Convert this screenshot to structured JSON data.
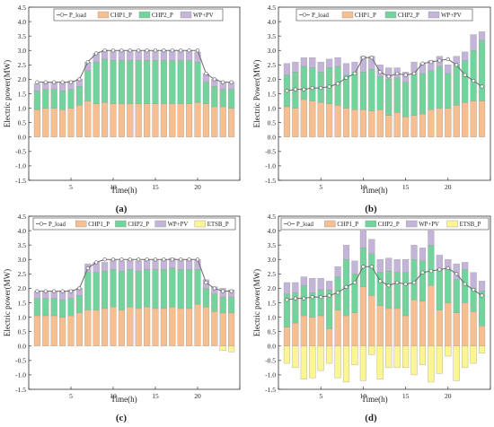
{
  "colors": {
    "chp1": "#f7bf8f",
    "chp2": "#72d49c",
    "wppv": "#c4b4d9",
    "etsb": "#fbf593",
    "load_line": "#6a6a6a",
    "load_marker_fill": "#ffffff",
    "bar_edge": "#9a9a9a"
  },
  "chart_data": [
    {
      "panel": "(a)",
      "type": "bar",
      "stacked": true,
      "xlabel": "Time(h)",
      "ylabel": "Electric power(MW)",
      "xlim": [
        0,
        25
      ],
      "ylim": [
        -1.5,
        4.5
      ],
      "xticks": [
        0,
        5,
        10,
        15,
        20,
        25
      ],
      "yticks": [
        -1.5,
        -1.0,
        -0.5,
        0.0,
        0.5,
        1.0,
        1.5,
        2.0,
        2.5,
        3.0,
        3.5,
        4.0,
        4.5
      ],
      "ytick_labels": [
        "-1.5",
        "-1.0",
        "-0.5",
        "0.0",
        "0.5",
        "1.0",
        "1.5",
        "2.0",
        "2.5",
        "3.0",
        "3.5",
        "4.0",
        "4.5"
      ],
      "legend_position": "top-left",
      "x": [
        1,
        2,
        3,
        4,
        5,
        6,
        7,
        8,
        9,
        10,
        11,
        12,
        13,
        14,
        15,
        16,
        17,
        18,
        19,
        20,
        21,
        22,
        23,
        24
      ],
      "series": [
        {
          "name": "P_load",
          "kind": "line",
          "values": [
            1.9,
            1.9,
            1.9,
            1.9,
            1.9,
            2.0,
            2.6,
            2.9,
            3.0,
            3.0,
            3.0,
            3.0,
            3.0,
            3.0,
            3.0,
            3.0,
            3.0,
            3.0,
            3.0,
            3.0,
            2.2,
            2.0,
            1.9,
            1.9
          ]
        },
        {
          "name": "CHP1_P",
          "color_key": "chp1",
          "values": [
            0.95,
            1.0,
            1.0,
            0.95,
            1.0,
            1.1,
            1.25,
            1.15,
            1.2,
            1.15,
            1.15,
            1.15,
            1.15,
            1.15,
            1.15,
            1.15,
            1.15,
            1.15,
            1.15,
            1.2,
            1.15,
            1.05,
            1.05,
            1.0
          ]
        },
        {
          "name": "CHP2_P",
          "color_key": "chp2",
          "values": [
            0.65,
            0.65,
            0.65,
            0.65,
            0.65,
            0.65,
            1.05,
            1.45,
            1.5,
            1.5,
            1.5,
            1.5,
            1.5,
            1.5,
            1.5,
            1.5,
            1.5,
            1.5,
            1.5,
            1.4,
            0.75,
            0.7,
            0.6,
            0.65
          ]
        },
        {
          "name": "WP+PV",
          "color_key": "wppv",
          "values": [
            0.25,
            0.25,
            0.25,
            0.3,
            0.3,
            0.25,
            0.3,
            0.3,
            0.3,
            0.35,
            0.35,
            0.35,
            0.35,
            0.35,
            0.35,
            0.35,
            0.35,
            0.35,
            0.35,
            0.35,
            0.3,
            0.25,
            0.25,
            0.25
          ]
        }
      ]
    },
    {
      "panel": "(b)",
      "type": "bar",
      "stacked": true,
      "xlabel": "Time(h)",
      "ylabel": "Electric Power(MW)",
      "xlim": [
        0,
        25
      ],
      "ylim": [
        -1.5,
        4.5
      ],
      "xticks": [
        0,
        5,
        10,
        15,
        20,
        25
      ],
      "yticks": [
        -1.5,
        -1.0,
        -0.5,
        0.0,
        0.5,
        1.0,
        1.5,
        2.0,
        2.5,
        3.0,
        3.5,
        4.0,
        4.5
      ],
      "ytick_labels": [
        "-1.5",
        "-1.0",
        "-0.5",
        "0.0",
        "0.5",
        "1.0",
        "1.5",
        "2.0",
        "2.5",
        "3.0",
        "3.5",
        "4.0",
        "4.5"
      ],
      "legend_position": "top",
      "x": [
        1,
        2,
        3,
        4,
        5,
        6,
        7,
        8,
        9,
        10,
        11,
        12,
        13,
        14,
        15,
        16,
        17,
        18,
        19,
        20,
        21,
        22,
        23,
        24
      ],
      "series": [
        {
          "name": "P_load",
          "kind": "line",
          "values": [
            1.6,
            1.65,
            1.65,
            1.7,
            1.7,
            1.75,
            1.85,
            2.05,
            2.2,
            2.75,
            2.75,
            2.25,
            2.1,
            2.2,
            2.15,
            2.2,
            2.55,
            2.6,
            2.65,
            2.7,
            2.5,
            2.15,
            1.95,
            1.75
          ]
        },
        {
          "name": "CHP1_P",
          "color_key": "chp1",
          "values": [
            1.05,
            1.0,
            1.3,
            1.25,
            1.2,
            1.15,
            1.1,
            1.0,
            0.95,
            0.95,
            0.9,
            0.95,
            0.75,
            0.85,
            0.7,
            0.75,
            0.8,
            0.95,
            1.0,
            1.0,
            1.1,
            1.2,
            1.25,
            1.25
          ]
        },
        {
          "name": "CHP2_P",
          "color_key": "chp2",
          "values": [
            1.1,
            1.25,
            1.15,
            1.15,
            1.05,
            1.25,
            1.35,
            1.15,
            1.3,
            1.3,
            1.45,
            1.15,
            1.25,
            1.2,
            1.2,
            1.45,
            1.4,
            1.35,
            1.45,
            1.2,
            1.4,
            1.45,
            1.75,
            2.1
          ]
        },
        {
          "name": "WP+PV",
          "color_key": "wppv",
          "values": [
            0.4,
            0.35,
            0.3,
            0.35,
            0.35,
            0.3,
            0.3,
            0.4,
            0.35,
            0.55,
            0.45,
            0.4,
            0.4,
            0.35,
            0.35,
            0.4,
            0.35,
            0.35,
            0.35,
            0.3,
            0.3,
            0.3,
            0.55,
            0.3
          ]
        }
      ]
    },
    {
      "panel": "(c)",
      "type": "bar",
      "stacked": true,
      "xlabel": "Time(h)",
      "ylabel": "Electric power(MW)",
      "xlim": [
        0,
        25
      ],
      "ylim": [
        -1.5,
        4.5
      ],
      "xticks": [
        0,
        5,
        10,
        15,
        20,
        25
      ],
      "yticks": [
        -1.5,
        -1.0,
        -0.5,
        0.0,
        0.5,
        1.0,
        1.5,
        2.0,
        2.5,
        3.0,
        3.5,
        4.0,
        4.5
      ],
      "ytick_labels": [
        "-1.5",
        "-1.0",
        "-0.5",
        "0.0",
        "0.5",
        "1.0",
        "1.5",
        "2.0",
        "2.5",
        "3.0",
        "3.5",
        "4.0",
        "4.5"
      ],
      "legend_position": "top",
      "x": [
        1,
        2,
        3,
        4,
        5,
        6,
        7,
        8,
        9,
        10,
        11,
        12,
        13,
        14,
        15,
        16,
        17,
        18,
        19,
        20,
        21,
        22,
        23,
        24
      ],
      "series": [
        {
          "name": "P_load",
          "kind": "line",
          "values": [
            1.9,
            1.9,
            1.9,
            1.9,
            1.9,
            2.0,
            2.7,
            2.9,
            3.0,
            3.0,
            3.0,
            3.0,
            3.0,
            3.0,
            3.0,
            3.0,
            3.0,
            3.0,
            3.0,
            3.0,
            2.2,
            2.0,
            1.9,
            1.9
          ]
        },
        {
          "name": "CHP1_P",
          "color_key": "chp1",
          "values": [
            1.05,
            1.05,
            1.05,
            1.0,
            1.05,
            1.15,
            1.25,
            1.25,
            1.3,
            1.35,
            1.25,
            1.35,
            1.3,
            1.35,
            1.3,
            1.3,
            1.35,
            1.3,
            1.3,
            1.45,
            1.35,
            1.2,
            1.15,
            1.15
          ]
        },
        {
          "name": "CHP2_P",
          "color_key": "chp2",
          "values": [
            0.6,
            0.6,
            0.6,
            0.6,
            0.6,
            0.6,
            1.3,
            1.3,
            1.3,
            1.3,
            1.35,
            1.3,
            1.3,
            1.3,
            1.35,
            1.35,
            1.35,
            1.35,
            1.35,
            1.2,
            0.65,
            0.6,
            0.55,
            0.55
          ]
        },
        {
          "name": "WP+PV",
          "color_key": "wppv",
          "values": [
            0.25,
            0.25,
            0.25,
            0.3,
            0.3,
            0.25,
            0.3,
            0.35,
            0.3,
            0.35,
            0.35,
            0.35,
            0.35,
            0.35,
            0.35,
            0.35,
            0.35,
            0.35,
            0.35,
            0.35,
            0.3,
            0.25,
            0.3,
            0.25
          ]
        },
        {
          "name": "ETSB_P",
          "color_key": "etsb",
          "values": [
            0,
            0,
            0,
            0,
            0,
            0,
            0,
            0,
            0,
            0,
            0,
            0,
            0,
            0,
            0,
            0,
            0,
            0,
            0,
            0,
            0,
            0,
            -0.15,
            -0.2
          ]
        }
      ]
    },
    {
      "panel": "(d)",
      "type": "bar",
      "stacked": true,
      "xlabel": "Time(h)",
      "ylabel": "Electric power(MW)",
      "xlim": [
        0,
        25
      ],
      "ylim": [
        -1.5,
        4.5
      ],
      "xticks": [
        0,
        5,
        10,
        15,
        20,
        25
      ],
      "yticks": [
        -1.5,
        -1.0,
        -0.5,
        0.0,
        0.5,
        1.0,
        1.5,
        2.0,
        2.5,
        3.0,
        3.5,
        4.0,
        4.5
      ],
      "ytick_labels": [
        "-1.5",
        "-1.0",
        "-0.5",
        "0.0",
        "0.5",
        "1.0",
        "1.5",
        "2.0",
        "2.5",
        "3.0",
        "3.5",
        "4.0",
        "4.5"
      ],
      "legend_position": "top",
      "x": [
        1,
        2,
        3,
        4,
        5,
        6,
        7,
        8,
        9,
        10,
        11,
        12,
        13,
        14,
        15,
        16,
        17,
        18,
        19,
        20,
        21,
        22,
        23,
        24
      ],
      "series": [
        {
          "name": "P_load",
          "kind": "line",
          "values": [
            1.6,
            1.65,
            1.65,
            1.7,
            1.7,
            1.75,
            1.85,
            2.05,
            2.2,
            2.75,
            2.75,
            2.25,
            2.1,
            2.2,
            2.15,
            2.2,
            2.55,
            2.6,
            2.65,
            2.7,
            2.5,
            2.15,
            1.95,
            1.75
          ]
        },
        {
          "name": "CHP1_P",
          "color_key": "chp1",
          "values": [
            0.65,
            0.8,
            1.05,
            1.0,
            1.05,
            0.6,
            1.25,
            1.05,
            1.15,
            2.05,
            1.75,
            1.4,
            1.3,
            1.3,
            1.05,
            1.6,
            1.55,
            2.1,
            1.25,
            1.5,
            1.15,
            1.5,
            1.2,
            0.7
          ]
        },
        {
          "name": "CHP2_P",
          "color_key": "chp2",
          "values": [
            1.15,
            1.05,
            1.05,
            0.85,
            0.9,
            1.35,
            1.15,
            1.95,
            1.35,
            1.35,
            1.45,
            1.15,
            1.3,
            1.25,
            1.5,
            1.4,
            1.4,
            1.4,
            1.4,
            1.15,
            1.15,
            1.15,
            0.8,
            1.2
          ]
        },
        {
          "name": "WP+PV",
          "color_key": "wppv",
          "values": [
            0.4,
            0.35,
            0.3,
            0.5,
            0.4,
            0.3,
            0.35,
            0.5,
            0.45,
            0.6,
            0.5,
            0.45,
            0.45,
            0.45,
            0.45,
            0.5,
            0.45,
            0.5,
            0.5,
            0.35,
            0.55,
            0.25,
            0.55,
            0.35
          ]
        },
        {
          "name": "ETSB_P",
          "color_key": "etsb",
          "values": [
            -0.6,
            -0.75,
            -1.15,
            -1.1,
            -0.85,
            -0.6,
            -1.1,
            -1.25,
            -0.65,
            -1.2,
            -0.3,
            -1.15,
            -0.75,
            -0.75,
            -0.75,
            -1.0,
            -0.65,
            -1.25,
            -0.95,
            -0.35,
            -1.2,
            -0.75,
            -0.6,
            -0.25
          ]
        }
      ]
    }
  ]
}
